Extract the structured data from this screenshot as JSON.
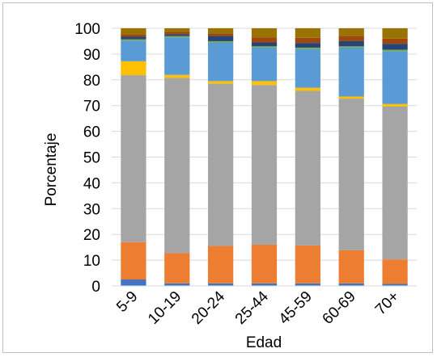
{
  "chart_data": {
    "type": "bar",
    "stacked": true,
    "xlabel": "Edad",
    "ylabel": "Porcentaje",
    "ylim": [
      0,
      100
    ],
    "yticks": [
      0,
      10,
      20,
      30,
      40,
      50,
      60,
      70,
      80,
      90,
      100
    ],
    "grid": true,
    "legend": "none",
    "categories": [
      "5-9",
      "10-19",
      "20-24",
      "25-44",
      "45-59",
      "60-69",
      "70+"
    ],
    "series": [
      {
        "color": "#4472c4",
        "values": [
          2.5,
          1.0,
          1.0,
          1.0,
          1.0,
          1.0,
          0.8
        ]
      },
      {
        "color": "#ed7d31",
        "values": [
          14.5,
          11.7,
          14.5,
          15.0,
          14.7,
          12.9,
          9.5
        ]
      },
      {
        "color": "#a5a5a5",
        "values": [
          64.8,
          68.0,
          63.0,
          62.0,
          60.0,
          58.8,
          59.3
        ]
      },
      {
        "color": "#ffc000",
        "values": [
          5.4,
          1.2,
          1.0,
          1.5,
          1.2,
          0.8,
          1.0
        ]
      },
      {
        "color": "#5b9bd5",
        "values": [
          8.0,
          14.6,
          15.0,
          13.0,
          15.0,
          19.0,
          20.5
        ]
      },
      {
        "color": "#70ad47",
        "values": [
          0.5,
          0.5,
          0.5,
          0.5,
          0.6,
          0.5,
          0.6
        ]
      },
      {
        "color": "#264478",
        "values": [
          1.0,
          0.7,
          2.0,
          1.5,
          1.8,
          2.0,
          2.3
        ]
      },
      {
        "color": "#9e480e",
        "values": [
          1.0,
          1.0,
          1.0,
          2.0,
          2.0,
          2.0,
          2.0
        ]
      },
      {
        "color": "#997300",
        "values": [
          2.3,
          1.3,
          2.0,
          3.5,
          3.7,
          3.0,
          4.0
        ]
      }
    ]
  }
}
